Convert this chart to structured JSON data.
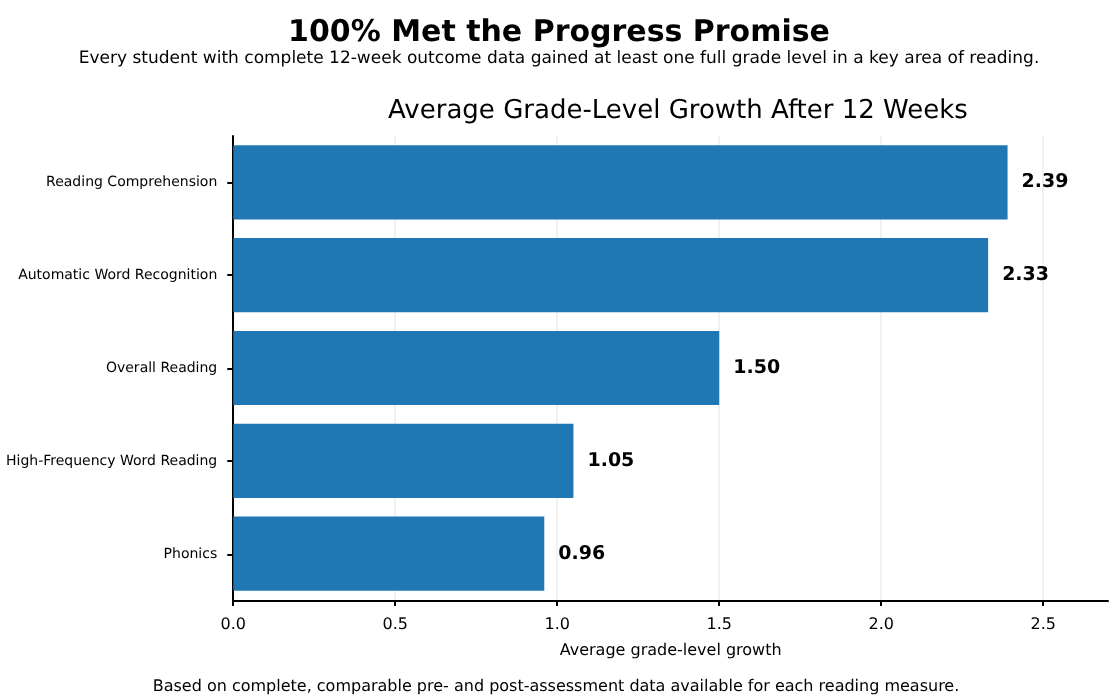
{
  "chart_data": {
    "type": "bar",
    "orientation": "horizontal",
    "title": "100% Met the Progress Promise",
    "subtitle": "Every student with complete 12-week outcome data gained at least one full grade level in a key area of reading.",
    "annotations": [
      "Average Grade-Level Growth After 12 Weeks",
      "Based on complete, comparable pre- and post-assessment data available for each reading measure."
    ],
    "xlabel": "Average grade-level growth",
    "categories": [
      "Reading Comprehension",
      "Automatic Word Recognition",
      "Overall Reading",
      "High-Frequency Word Reading",
      "Phonics"
    ],
    "values": [
      2.39,
      2.33,
      1.5,
      1.05,
      0.96
    ],
    "value_labels": [
      "2.39",
      "2.33",
      "1.50",
      "1.05",
      "0.96"
    ],
    "color": "#1f77b4",
    "xlim": [
      0,
      2.7
    ],
    "xticks": [
      "0.0",
      "0.5",
      "1.0",
      "1.5",
      "2.0",
      "2.5"
    ],
    "grid": "x"
  }
}
